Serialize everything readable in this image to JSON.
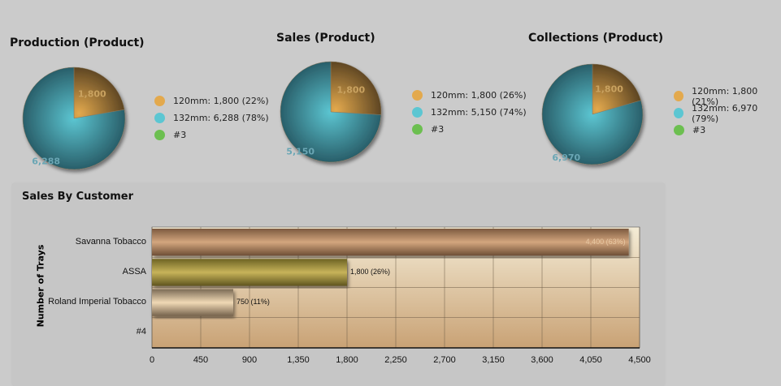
{
  "chart_data": [
    {
      "type": "pie",
      "title": "Production (Product)",
      "slices": [
        {
          "label": "120mm",
          "value": 1800,
          "pct": "22%",
          "display": "1,800",
          "legend": "120mm: 1,800 (22%)"
        },
        {
          "label": "132mm",
          "value": 6288,
          "pct": "78%",
          "display": "6,288",
          "legend": "132mm: 6,288 (78%)"
        },
        {
          "label": "#3",
          "value": 0,
          "legend": "#3"
        }
      ]
    },
    {
      "type": "pie",
      "title": "Sales (Product)",
      "slices": [
        {
          "label": "120mm",
          "value": 1800,
          "pct": "26%",
          "display": "1,800",
          "legend": "120mm: 1,800 (26%)"
        },
        {
          "label": "132mm",
          "value": 5150,
          "pct": "74%",
          "display": "5,150",
          "legend": "132mm: 5,150 (74%)"
        },
        {
          "label": "#3",
          "value": 0,
          "legend": "#3"
        }
      ]
    },
    {
      "type": "pie",
      "title": "Collections (Product)",
      "slices": [
        {
          "label": "120mm",
          "value": 1800,
          "pct": "21%",
          "display": "1,800",
          "legend": "120mm: 1,800 (21%)"
        },
        {
          "label": "132mm",
          "value": 6970,
          "pct": "79%",
          "display": "6,970",
          "legend": "132mm: 6,970 (79%)"
        },
        {
          "label": "#3",
          "value": 0,
          "legend": "#3"
        }
      ]
    },
    {
      "type": "bar",
      "orientation": "horizontal",
      "title": "Sales By Customer",
      "ylabel": "Number of Trays",
      "xlim": [
        0,
        4500
      ],
      "ticks": [
        "0",
        "450",
        "900",
        "1,350",
        "1,800",
        "2,250",
        "2,700",
        "3,150",
        "3,600",
        "4,050",
        "4,500"
      ],
      "categories": [
        "Savanna Tobacco",
        "ASSA",
        "Roland Imperial Tobacco",
        "#4"
      ],
      "values": [
        4400,
        1800,
        750,
        0
      ],
      "labels": [
        "4,400 (63%)",
        "1,800 (26%)",
        "750 (11%)",
        ""
      ]
    }
  ],
  "colors": {
    "c120": "#e3a94d",
    "c132": "#5cc6d2",
    "c3": "#6cbf50"
  }
}
